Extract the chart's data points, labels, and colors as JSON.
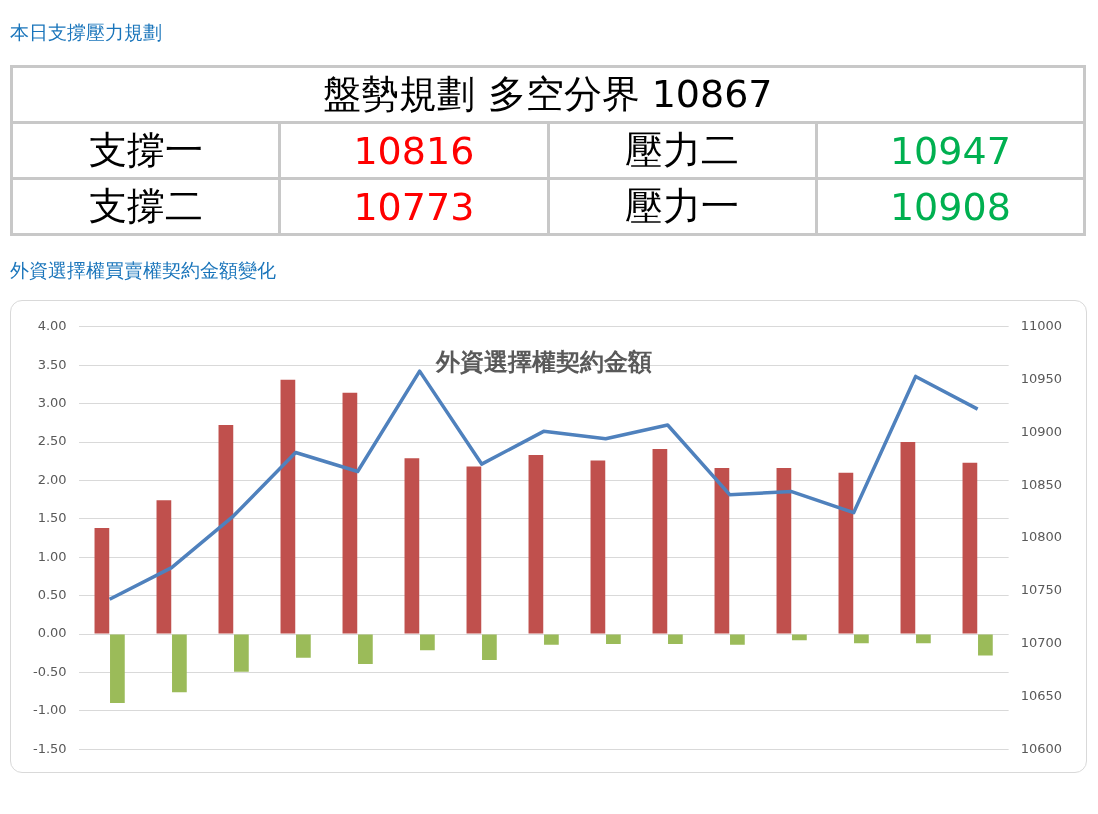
{
  "chart_data": [
    {
      "type": "other",
      "title": "本日支撐壓力規劃",
      "annotations": [
        "盤勢規劃 多空分界 10867",
        "支撐一",
        "10816",
        "壓力二",
        "10947",
        "支撐二",
        "10773",
        "壓力一",
        "10908"
      ],
      "colors": [
        "#000000",
        "#000000",
        "#ff0000",
        "#000000",
        "#00b050",
        "#000000",
        "#ff0000",
        "#000000",
        "#00b050"
      ]
    },
    {
      "type": "bar",
      "title": "外資選擇權契約金額",
      "annotations": [
        "外資選擇權買賣權契約金額變化"
      ],
      "categories": [
        null,
        null,
        null,
        null,
        null,
        null,
        null,
        null,
        null,
        null,
        null,
        null,
        null,
        null,
        null
      ],
      "series": [
        {
          "color": "#c0504d",
          "values": [
            1.38,
            1.74,
            2.72,
            3.31,
            3.14,
            2.29,
            2.18,
            2.33,
            2.26,
            2.41,
            2.16,
            2.16,
            2.1,
            2.5,
            2.23
          ]
        },
        {
          "color": "#9bbb59",
          "values": [
            -0.9,
            -0.76,
            -0.49,
            -0.31,
            -0.39,
            -0.21,
            -0.34,
            -0.14,
            -0.13,
            -0.13,
            -0.14,
            -0.08,
            -0.12,
            -0.12,
            -0.28
          ]
        },
        {
          "type": "line",
          "axis": "y2",
          "color": "#4f81bd",
          "values": [
            10742,
            10772,
            10821,
            10881,
            10863,
            10958,
            10870,
            10901,
            10894,
            10907,
            10841,
            10844,
            10824,
            10953,
            10922
          ]
        }
      ],
      "ylim": [
        -1.5,
        4
      ],
      "yticks": [
        {
          "value": -1.5,
          "label": "-1.50"
        },
        {
          "value": -1,
          "label": "-1.00"
        },
        {
          "value": -0.5,
          "label": "-0.50"
        },
        {
          "value": 0,
          "label": "0.00"
        },
        {
          "value": 0.5,
          "label": "0.50"
        },
        {
          "value": 1,
          "label": "1.00"
        },
        {
          "value": 1.5,
          "label": "1.50"
        },
        {
          "value": 2,
          "label": "2.00"
        },
        {
          "value": 2.5,
          "label": "2.50"
        },
        {
          "value": 3,
          "label": "3.00"
        },
        {
          "value": 3.5,
          "label": "3.50"
        },
        {
          "value": 4,
          "label": "4.00"
        }
      ],
      "y2lim": [
        10600,
        11000
      ],
      "y2ticks": [
        10600,
        10650,
        10700,
        10750,
        10800,
        10850,
        10900,
        10950,
        11000
      ],
      "grid": "y",
      "legend": false,
      "marker": "none",
      "line_style": "solid"
    }
  ]
}
